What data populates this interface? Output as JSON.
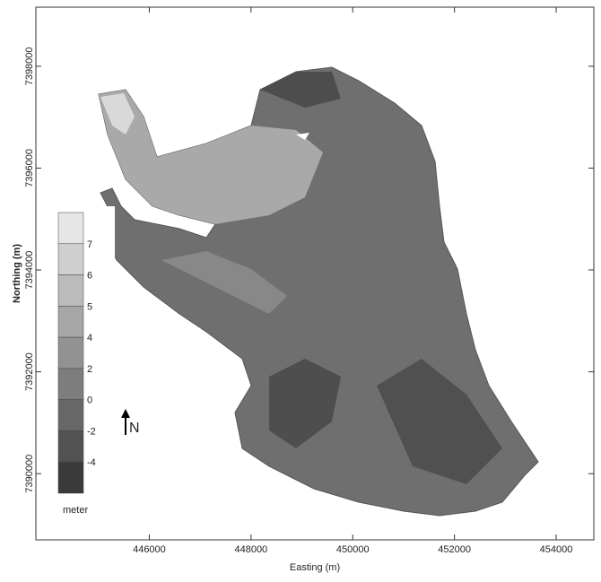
{
  "chart_data": {
    "type": "map",
    "xlabel": "Easting (m)",
    "ylabel": "Northing (m)",
    "xlim": [
      443770,
      454740
    ],
    "ylim": [
      7388700,
      7399160
    ],
    "xticks": [
      446000,
      448000,
      450000,
      452000,
      454000
    ],
    "yticks": [
      7390000,
      7392000,
      7394000,
      7396000,
      7398000
    ],
    "colorbar": {
      "title": "meter",
      "labels": [
        7,
        6,
        5,
        4,
        2,
        0,
        -2,
        -4
      ],
      "colors": [
        "#e6e6e6",
        "#cfcfcf",
        "#bbbbbb",
        "#a6a6a6",
        "#929292",
        "#7d7d7d",
        "#676767",
        "#525252",
        "#3a3a3a"
      ]
    },
    "north_label": "N"
  }
}
